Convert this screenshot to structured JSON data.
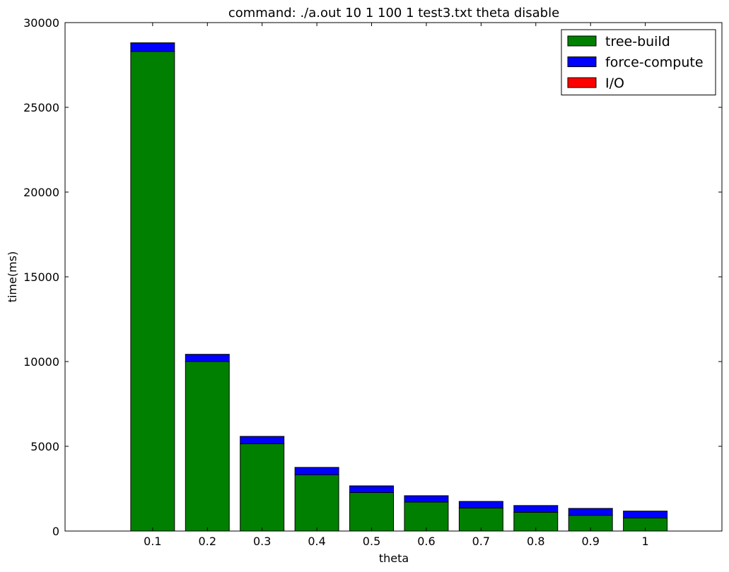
{
  "chart_data": {
    "type": "bar",
    "stacked": true,
    "title": "command: ./a.out 10 1 100 1 test3.txt theta disable",
    "xlabel": "theta",
    "ylabel": "time(ms)",
    "categories": [
      "0.1",
      "0.2",
      "0.3",
      "0.4",
      "0.5",
      "0.6",
      "0.7",
      "0.8",
      "0.9",
      "1"
    ],
    "ylim": [
      0,
      30000
    ],
    "yticks": [
      0,
      5000,
      10000,
      15000,
      20000,
      25000,
      30000
    ],
    "ytick_labels": [
      "0",
      "5000",
      "10000",
      "15000",
      "20000",
      "25000",
      "30000"
    ],
    "grid": false,
    "legend_position": "top-right",
    "series": [
      {
        "name": "tree-build",
        "color": "#008000",
        "values": [
          28300,
          10000,
          5150,
          3320,
          2270,
          1710,
          1360,
          1110,
          930,
          770
        ]
      },
      {
        "name": "force-compute",
        "color": "#0000ff",
        "values": [
          500,
          420,
          430,
          430,
          390,
          370,
          380,
          390,
          400,
          400
        ]
      },
      {
        "name": "I/O",
        "color": "#ff0000",
        "values": [
          5,
          5,
          5,
          5,
          5,
          5,
          5,
          5,
          5,
          5
        ]
      }
    ]
  }
}
